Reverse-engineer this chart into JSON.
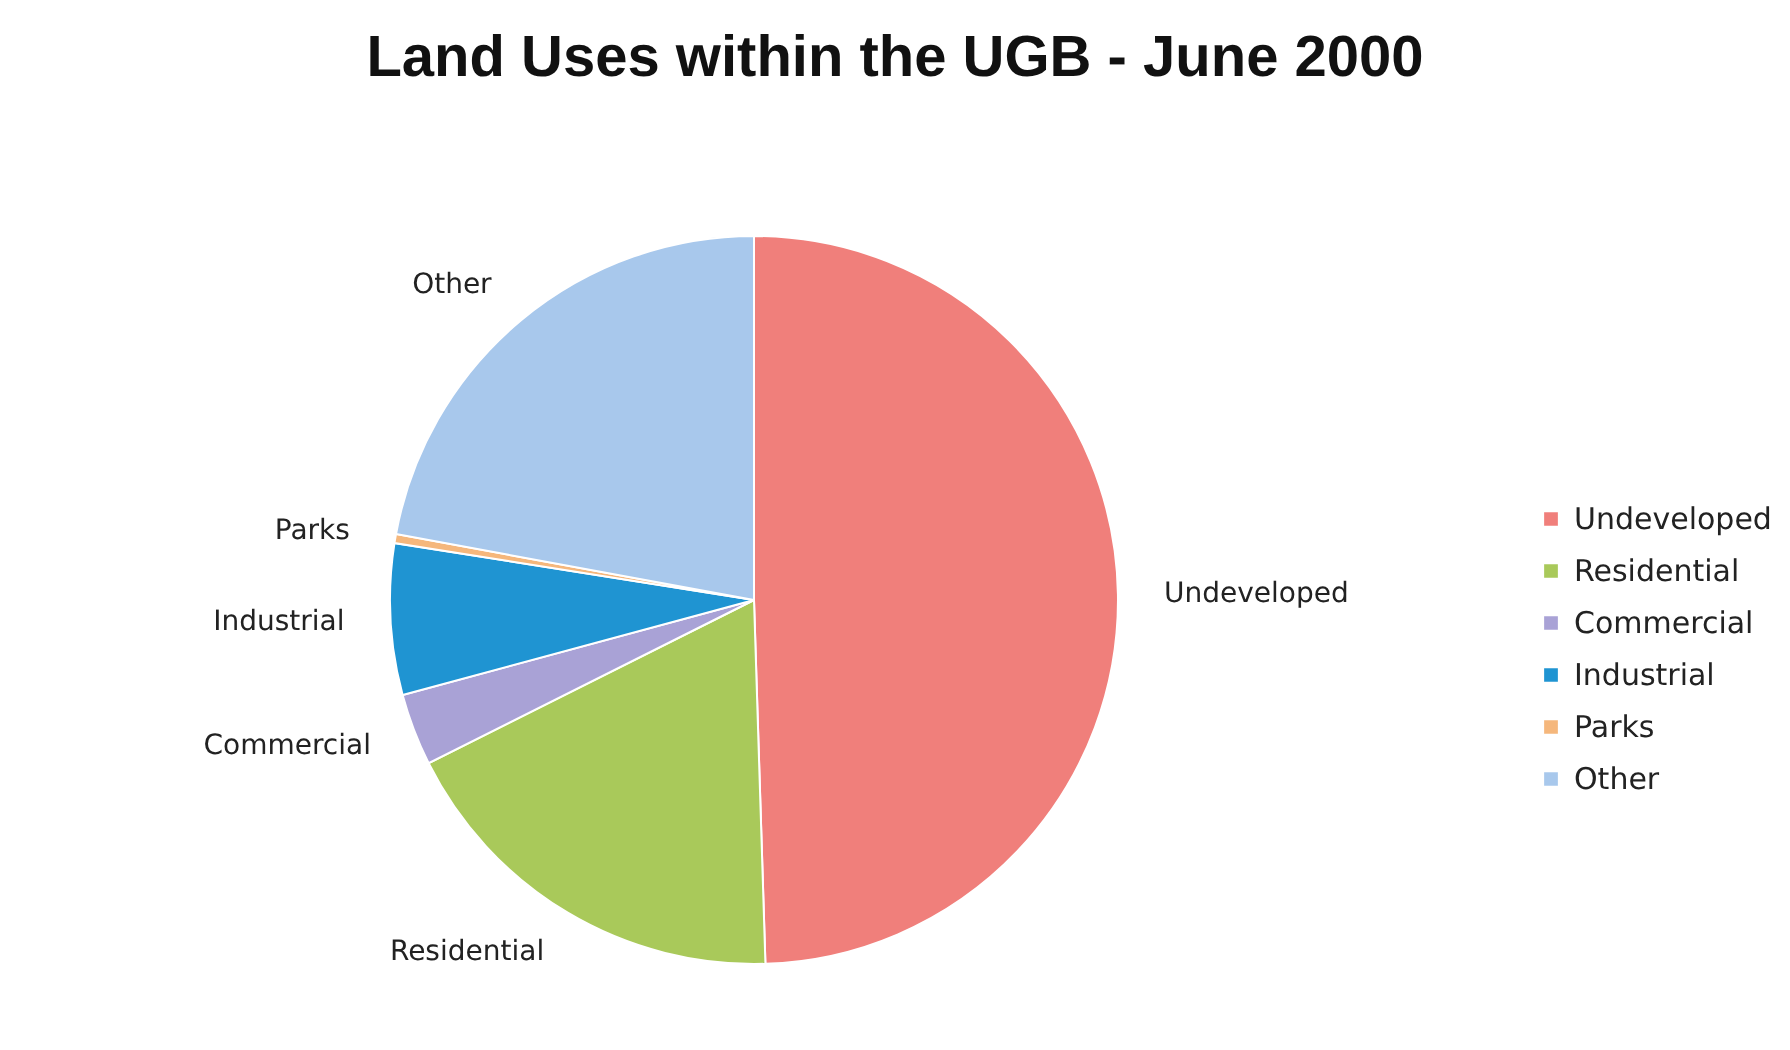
{
  "chart_data": {
    "type": "pie",
    "title": "Land Uses within the UGB - June 2000",
    "categories": [
      "Undeveloped",
      "Residential",
      "Commercial",
      "Industrial",
      "Parks",
      "Other"
    ],
    "values": [
      49.5,
      18.1,
      3.2,
      6.7,
      0.4,
      22.1
    ],
    "colors": [
      "#f07f7b",
      "#a9c95a",
      "#a9a2d6",
      "#1f94d2",
      "#f5b77c",
      "#a8c8ec"
    ],
    "legend": "right"
  }
}
